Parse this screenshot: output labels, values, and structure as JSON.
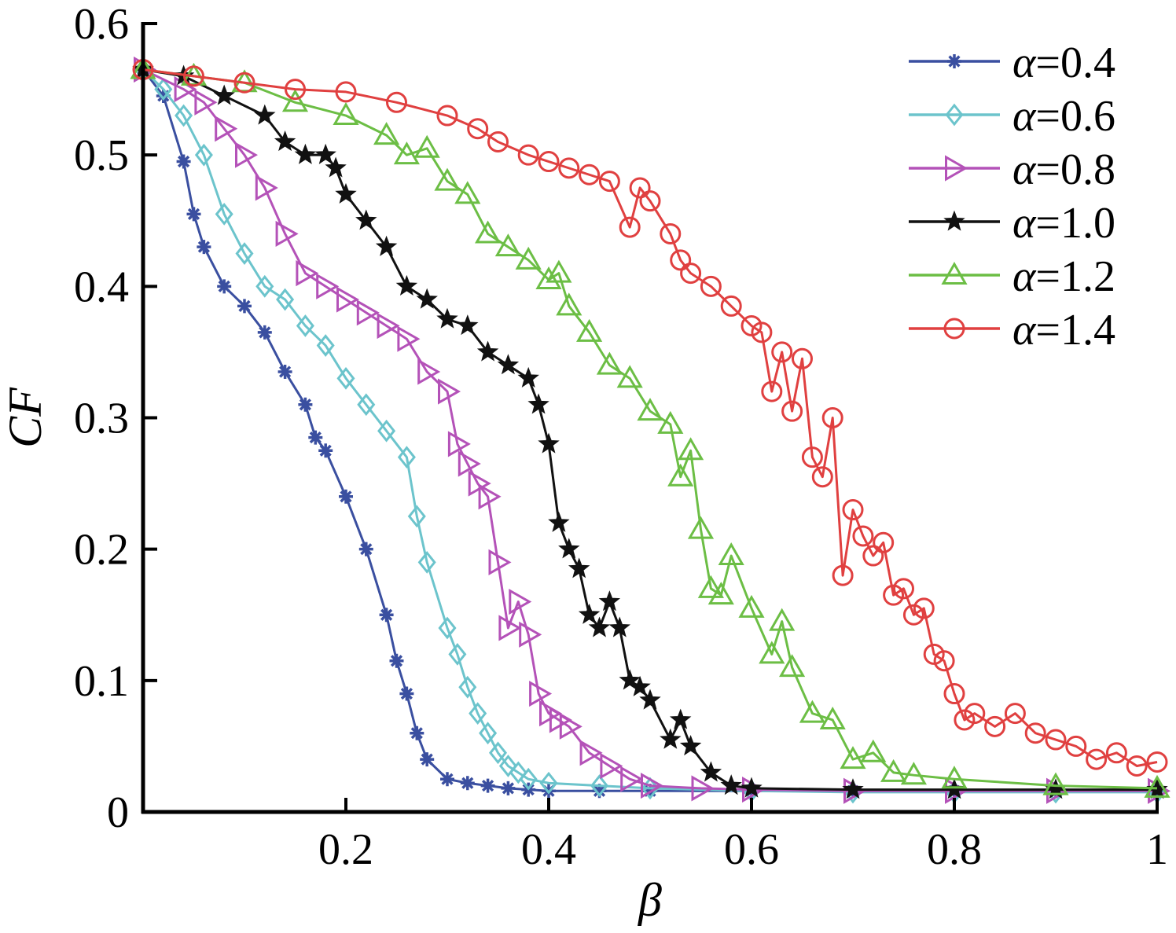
{
  "chart_data": {
    "type": "line",
    "xlabel": "β",
    "ylabel": "CF",
    "xlim": [
      0,
      1
    ],
    "ylim": [
      0,
      0.6
    ],
    "xticks": [
      0.2,
      0.4,
      0.6,
      0.8,
      1
    ],
    "xtick_labels": [
      "0.2",
      "0.4",
      "0.6",
      "0.8",
      "1"
    ],
    "yticks": [
      0,
      0.1,
      0.2,
      0.3,
      0.4,
      0.5,
      0.6
    ],
    "ytick_labels": [
      "0",
      "0.1",
      "0.2",
      "0.3",
      "0.4",
      "0.5",
      "0.6"
    ],
    "grid": false,
    "legend_position": "top-right",
    "series": [
      {
        "name": "α=0.4",
        "greek": "α",
        "value_label": "=0.4",
        "color": "#3a4fa0",
        "marker": "asterisk",
        "x": [
          0,
          0.02,
          0.04,
          0.05,
          0.06,
          0.08,
          0.1,
          0.12,
          0.14,
          0.16,
          0.17,
          0.18,
          0.2,
          0.22,
          0.24,
          0.25,
          0.26,
          0.27,
          0.28,
          0.3,
          0.32,
          0.34,
          0.36,
          0.38,
          0.4,
          0.45,
          0.5,
          0.6,
          0.7,
          0.8,
          0.9,
          1.0
        ],
        "y": [
          0.565,
          0.545,
          0.495,
          0.455,
          0.43,
          0.4,
          0.385,
          0.365,
          0.335,
          0.31,
          0.285,
          0.275,
          0.24,
          0.2,
          0.15,
          0.115,
          0.09,
          0.06,
          0.04,
          0.025,
          0.022,
          0.02,
          0.018,
          0.017,
          0.016,
          0.016,
          0.016,
          0.016,
          0.016,
          0.016,
          0.016,
          0.016
        ]
      },
      {
        "name": "α=0.6",
        "greek": "α",
        "value_label": "=0.6",
        "color": "#6cc4cc",
        "marker": "diamond",
        "x": [
          0,
          0.02,
          0.04,
          0.06,
          0.08,
          0.1,
          0.12,
          0.14,
          0.16,
          0.18,
          0.2,
          0.22,
          0.24,
          0.26,
          0.27,
          0.28,
          0.3,
          0.31,
          0.32,
          0.33,
          0.34,
          0.35,
          0.36,
          0.37,
          0.38,
          0.4,
          0.45,
          0.5,
          0.6,
          0.7,
          0.8,
          0.9,
          1.0
        ],
        "y": [
          0.565,
          0.55,
          0.53,
          0.5,
          0.455,
          0.425,
          0.4,
          0.39,
          0.37,
          0.355,
          0.33,
          0.31,
          0.29,
          0.27,
          0.225,
          0.19,
          0.14,
          0.12,
          0.095,
          0.075,
          0.06,
          0.045,
          0.035,
          0.03,
          0.025,
          0.022,
          0.02,
          0.018,
          0.016,
          0.015,
          0.015,
          0.015,
          0.015
        ]
      },
      {
        "name": "α=0.8",
        "greek": "α",
        "value_label": "=0.8",
        "color": "#b452b8",
        "marker": "triangle-right",
        "x": [
          0,
          0.04,
          0.06,
          0.08,
          0.1,
          0.12,
          0.14,
          0.16,
          0.18,
          0.2,
          0.22,
          0.24,
          0.26,
          0.28,
          0.3,
          0.31,
          0.32,
          0.33,
          0.34,
          0.35,
          0.36,
          0.37,
          0.38,
          0.39,
          0.4,
          0.41,
          0.42,
          0.44,
          0.46,
          0.48,
          0.5,
          0.55,
          0.6,
          0.7,
          0.8,
          0.9,
          1.0
        ],
        "y": [
          0.565,
          0.55,
          0.54,
          0.52,
          0.5,
          0.475,
          0.44,
          0.41,
          0.4,
          0.39,
          0.38,
          0.37,
          0.36,
          0.335,
          0.32,
          0.28,
          0.265,
          0.25,
          0.24,
          0.19,
          0.14,
          0.16,
          0.135,
          0.09,
          0.075,
          0.07,
          0.065,
          0.045,
          0.035,
          0.025,
          0.02,
          0.018,
          0.017,
          0.016,
          0.016,
          0.016,
          0.016
        ]
      },
      {
        "name": "α=1.0",
        "greek": "α",
        "value_label": "=1.0",
        "color": "#111111",
        "marker": "star",
        "x": [
          0,
          0.04,
          0.08,
          0.12,
          0.14,
          0.16,
          0.18,
          0.19,
          0.2,
          0.22,
          0.24,
          0.26,
          0.28,
          0.3,
          0.32,
          0.34,
          0.36,
          0.38,
          0.39,
          0.4,
          0.41,
          0.42,
          0.43,
          0.44,
          0.45,
          0.46,
          0.47,
          0.48,
          0.49,
          0.5,
          0.52,
          0.53,
          0.54,
          0.56,
          0.58,
          0.6,
          0.7,
          0.8,
          0.9,
          1.0
        ],
        "y": [
          0.565,
          0.56,
          0.545,
          0.53,
          0.51,
          0.5,
          0.5,
          0.49,
          0.47,
          0.45,
          0.43,
          0.4,
          0.39,
          0.375,
          0.37,
          0.35,
          0.34,
          0.33,
          0.31,
          0.28,
          0.22,
          0.2,
          0.185,
          0.15,
          0.14,
          0.16,
          0.14,
          0.1,
          0.095,
          0.085,
          0.055,
          0.07,
          0.05,
          0.03,
          0.02,
          0.018,
          0.017,
          0.017,
          0.017,
          0.017
        ]
      },
      {
        "name": "α=1.2",
        "greek": "α",
        "value_label": "=1.2",
        "color": "#6cbe45",
        "marker": "triangle-up",
        "x": [
          0,
          0.05,
          0.1,
          0.15,
          0.2,
          0.24,
          0.26,
          0.28,
          0.3,
          0.32,
          0.34,
          0.36,
          0.38,
          0.4,
          0.41,
          0.42,
          0.44,
          0.46,
          0.48,
          0.5,
          0.52,
          0.53,
          0.54,
          0.55,
          0.56,
          0.57,
          0.58,
          0.6,
          0.62,
          0.63,
          0.64,
          0.66,
          0.68,
          0.7,
          0.72,
          0.74,
          0.76,
          0.8,
          0.9,
          1.0
        ],
        "y": [
          0.565,
          0.56,
          0.555,
          0.54,
          0.53,
          0.515,
          0.5,
          0.505,
          0.48,
          0.47,
          0.44,
          0.43,
          0.42,
          0.405,
          0.41,
          0.385,
          0.365,
          0.34,
          0.33,
          0.305,
          0.295,
          0.255,
          0.275,
          0.215,
          0.17,
          0.165,
          0.195,
          0.155,
          0.12,
          0.145,
          0.11,
          0.075,
          0.07,
          0.04,
          0.045,
          0.03,
          0.028,
          0.025,
          0.02,
          0.018
        ]
      },
      {
        "name": "α=1.4",
        "greek": "α",
        "value_label": "=1.4",
        "color": "#e04040",
        "marker": "circle",
        "x": [
          0,
          0.05,
          0.1,
          0.15,
          0.2,
          0.25,
          0.3,
          0.33,
          0.35,
          0.38,
          0.4,
          0.42,
          0.44,
          0.46,
          0.48,
          0.49,
          0.5,
          0.52,
          0.53,
          0.54,
          0.56,
          0.58,
          0.6,
          0.61,
          0.62,
          0.63,
          0.64,
          0.65,
          0.66,
          0.67,
          0.68,
          0.69,
          0.7,
          0.71,
          0.72,
          0.73,
          0.74,
          0.75,
          0.76,
          0.77,
          0.78,
          0.79,
          0.8,
          0.81,
          0.82,
          0.84,
          0.86,
          0.88,
          0.9,
          0.92,
          0.94,
          0.96,
          0.98,
          1.0
        ],
        "y": [
          0.565,
          0.56,
          0.555,
          0.55,
          0.548,
          0.54,
          0.53,
          0.52,
          0.51,
          0.5,
          0.495,
          0.49,
          0.485,
          0.48,
          0.445,
          0.475,
          0.465,
          0.44,
          0.42,
          0.41,
          0.4,
          0.385,
          0.37,
          0.365,
          0.32,
          0.35,
          0.305,
          0.345,
          0.27,
          0.255,
          0.3,
          0.18,
          0.23,
          0.21,
          0.195,
          0.205,
          0.165,
          0.17,
          0.15,
          0.155,
          0.12,
          0.115,
          0.09,
          0.07,
          0.075,
          0.065,
          0.075,
          0.06,
          0.055,
          0.05,
          0.04,
          0.045,
          0.035,
          0.038
        ]
      }
    ]
  }
}
